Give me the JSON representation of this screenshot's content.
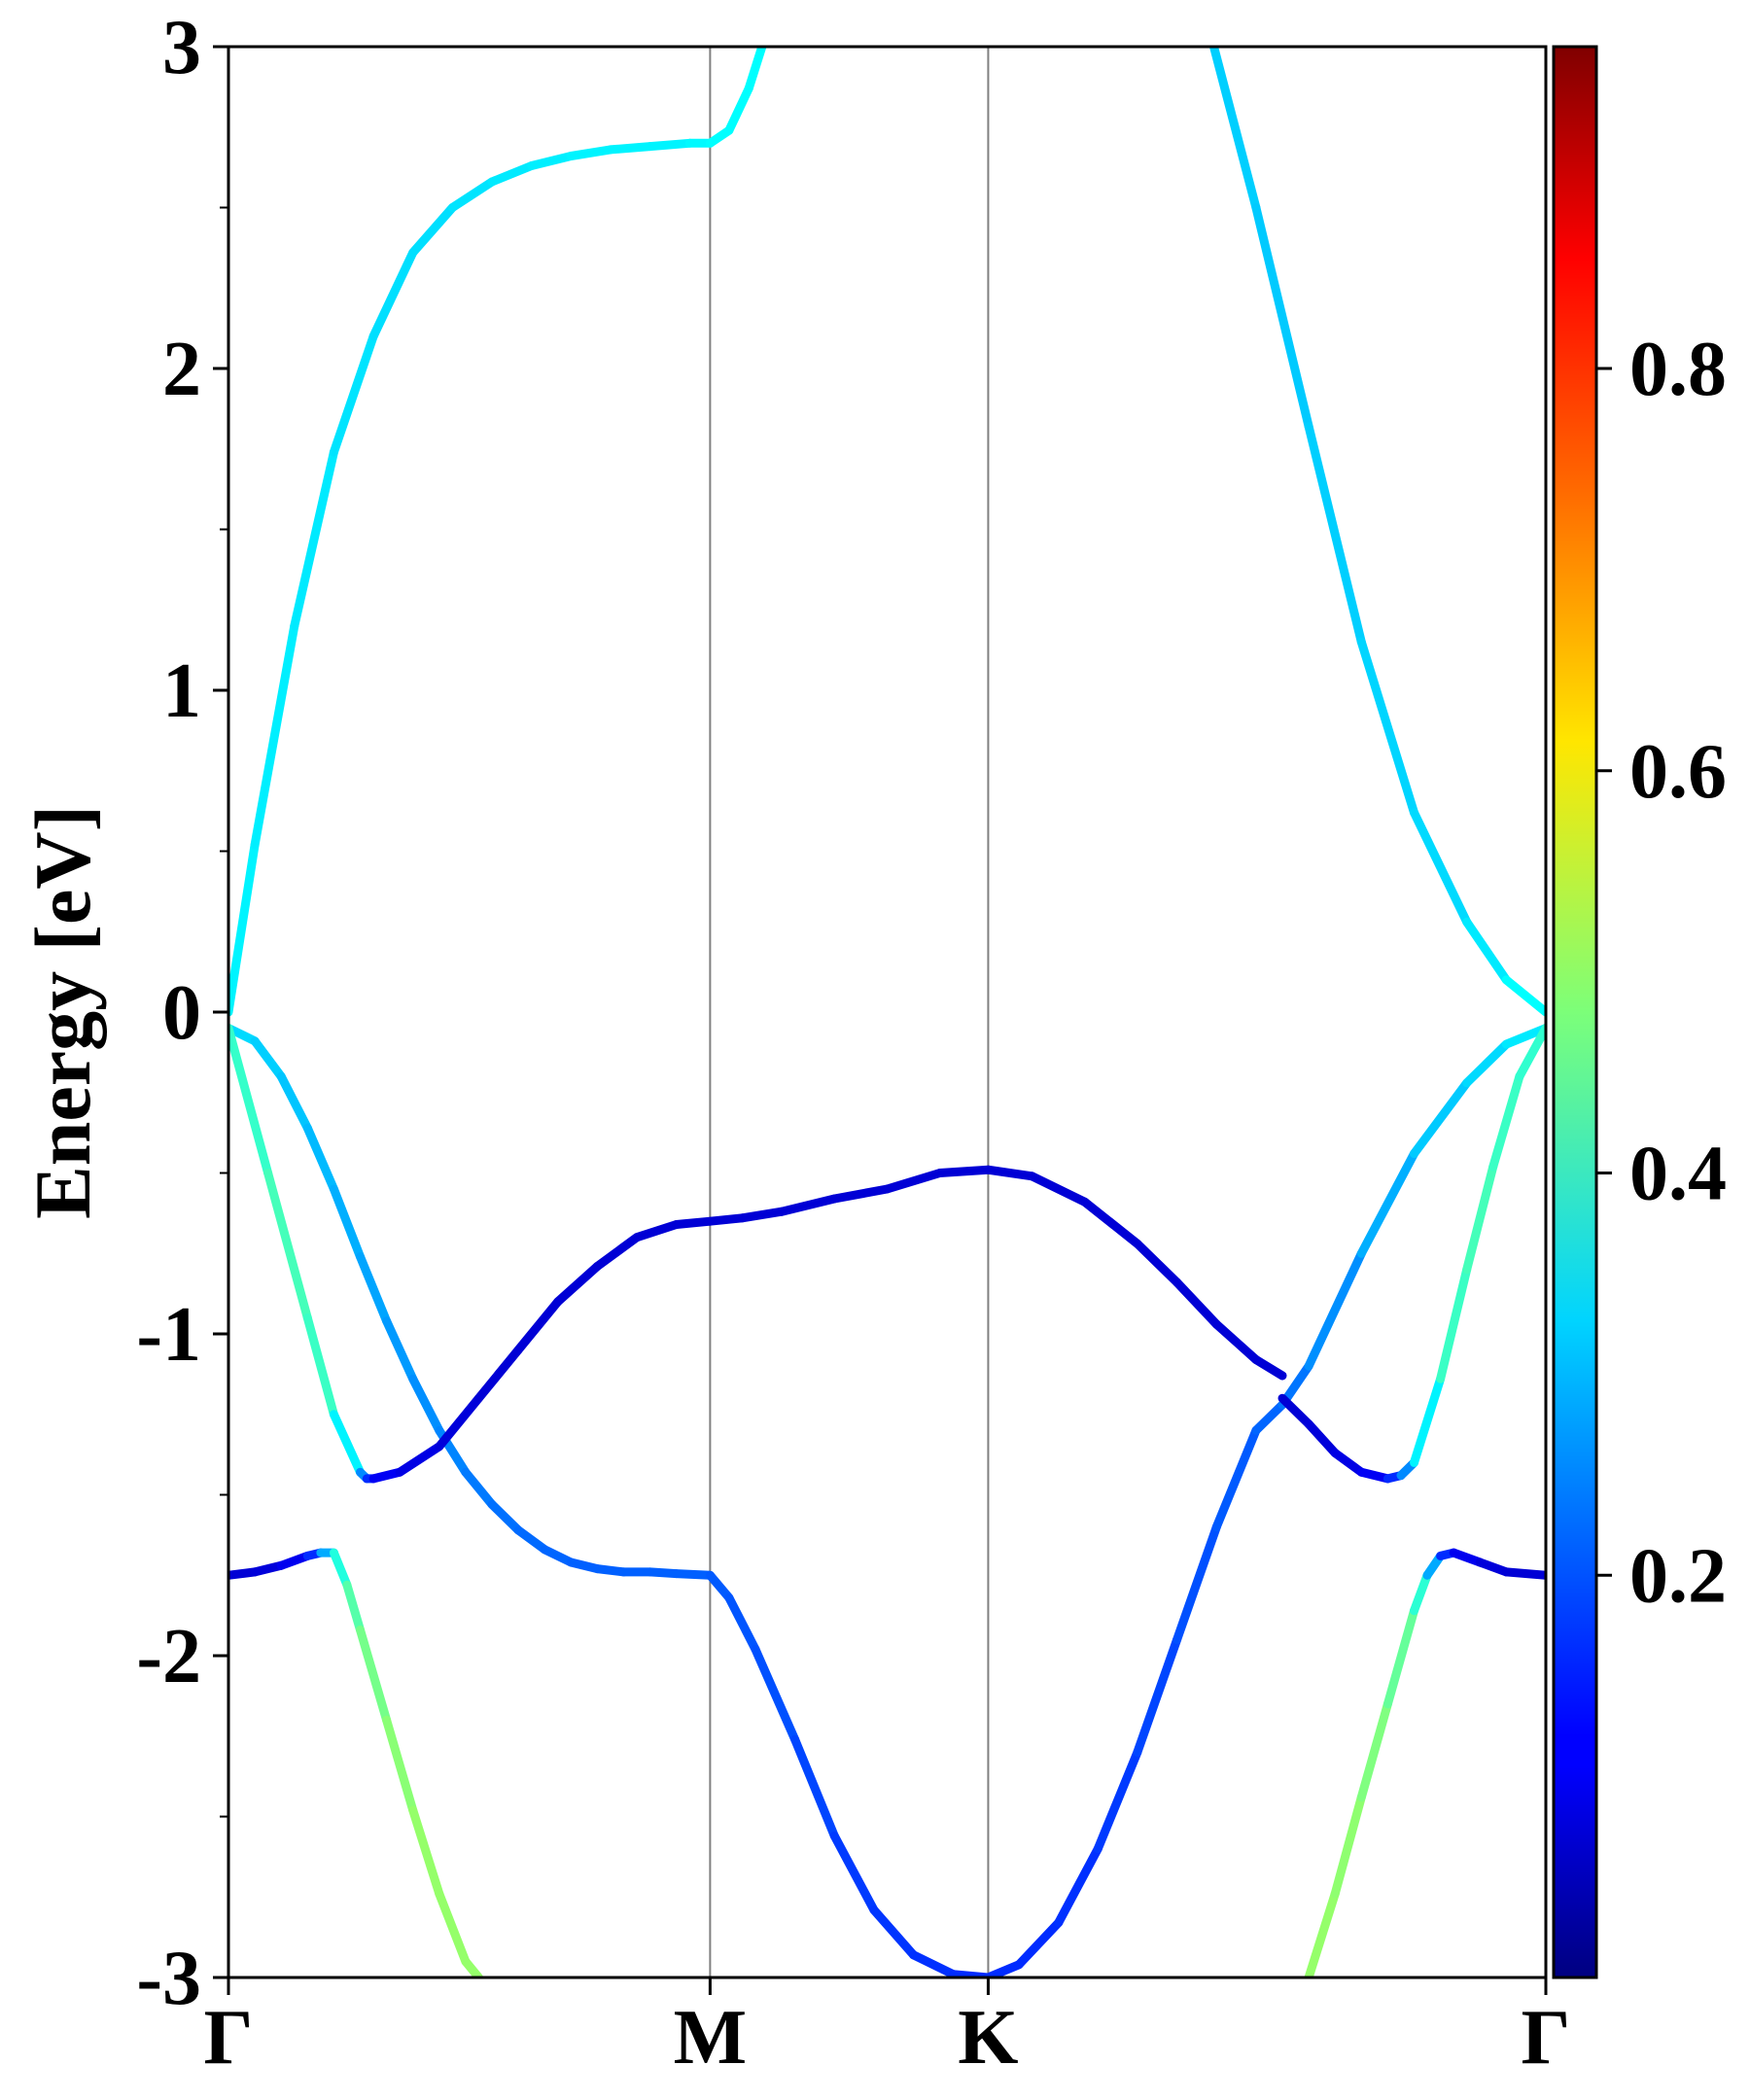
{
  "chart_data": {
    "type": "line",
    "title": "",
    "xlabel": "",
    "ylabel": "Energy [eV]",
    "ylim": [
      -3,
      3
    ],
    "y_major_ticks": [
      -3,
      -2,
      -1,
      0,
      1,
      2,
      3
    ],
    "y_minor_step": 0.5,
    "y_tick_labels": [
      "-3",
      "-2",
      "-1",
      "0",
      "1",
      "2",
      "3"
    ],
    "k_path": [
      {
        "label": "Γ",
        "k": 0.0
      },
      {
        "label": "M",
        "k": 0.3656
      },
      {
        "label": "K",
        "k": 0.5767
      },
      {
        "label": "Γ",
        "k": 1.0
      }
    ],
    "xlim": [
      0.0,
      1.0
    ],
    "colorbar": {
      "colormap": "jet",
      "range": [
        0.0,
        0.96
      ],
      "ticks": [
        0.2,
        0.4,
        0.6,
        0.8
      ],
      "tick_labels": [
        "0.2",
        "0.4",
        "0.6",
        "0.8"
      ]
    },
    "series": [
      {
        "x": [
          0.0,
          0.02,
          0.05,
          0.08,
          0.11,
          0.14,
          0.17,
          0.2,
          0.23,
          0.26,
          0.29,
          0.32,
          0.35,
          0.3656,
          0.38,
          0.395,
          0.405
        ],
        "y": [
          0.0,
          0.52,
          1.2,
          1.74,
          2.1,
          2.36,
          2.5,
          2.58,
          2.63,
          2.66,
          2.68,
          2.69,
          2.7,
          2.7,
          2.74,
          2.87,
          3.0
        ],
        "c": [
          0.35,
          0.35,
          0.34,
          0.34,
          0.33,
          0.33,
          0.33,
          0.34,
          0.34,
          0.35,
          0.35,
          0.35,
          0.35,
          0.36,
          0.36,
          0.36,
          0.36
        ]
      },
      {
        "x": [
          0.748,
          0.78,
          0.82,
          0.86,
          0.9,
          0.94,
          0.97,
          1.0
        ],
        "y": [
          3.0,
          2.5,
          1.82,
          1.15,
          0.62,
          0.28,
          0.1,
          0.0
        ],
        "c": [
          0.32,
          0.31,
          0.31,
          0.32,
          0.32,
          0.33,
          0.35,
          0.37
        ]
      },
      {
        "x": [
          0.0,
          0.02,
          0.04,
          0.06,
          0.08,
          0.1,
          0.12,
          0.14,
          0.16,
          0.18,
          0.2,
          0.22,
          0.24,
          0.26,
          0.28,
          0.3,
          0.32,
          0.34,
          0.3656,
          0.38,
          0.4,
          0.43,
          0.46,
          0.49,
          0.52,
          0.55,
          0.5767,
          0.6,
          0.63,
          0.66,
          0.69,
          0.72,
          0.75,
          0.78,
          0.8,
          0.82,
          0.86,
          0.9,
          0.94,
          0.97,
          1.0
        ],
        "y": [
          -0.05,
          -0.09,
          -0.2,
          -0.36,
          -0.55,
          -0.76,
          -0.96,
          -1.14,
          -1.3,
          -1.43,
          -1.53,
          -1.61,
          -1.67,
          -1.71,
          -1.73,
          -1.74,
          -1.74,
          -1.745,
          -1.75,
          -1.82,
          -1.98,
          -2.26,
          -2.56,
          -2.79,
          -2.93,
          -2.99,
          -3.0,
          -2.96,
          -2.83,
          -2.6,
          -2.3,
          -1.95,
          -1.6,
          -1.3,
          -1.22,
          -1.1,
          -0.75,
          -0.44,
          -0.22,
          -0.1,
          -0.05
        ],
        "c": [
          0.33,
          0.32,
          0.31,
          0.3,
          0.29,
          0.28,
          0.27,
          0.26,
          0.25,
          0.24,
          0.23,
          0.22,
          0.22,
          0.21,
          0.21,
          0.21,
          0.21,
          0.21,
          0.21,
          0.2,
          0.2,
          0.19,
          0.18,
          0.17,
          0.17,
          0.16,
          0.16,
          0.16,
          0.16,
          0.17,
          0.18,
          0.19,
          0.2,
          0.21,
          0.22,
          0.24,
          0.27,
          0.3,
          0.32,
          0.33,
          0.35
        ]
      },
      {
        "x": [
          0.0,
          0.03,
          0.06,
          0.08,
          0.1,
          0.105,
          0.11,
          0.13,
          0.16,
          0.19,
          0.22,
          0.25,
          0.28,
          0.31,
          0.34,
          0.3656,
          0.39,
          0.42,
          0.46,
          0.5,
          0.54,
          0.5767,
          0.61,
          0.65,
          0.69,
          0.72,
          0.75,
          0.78,
          0.8
        ],
        "y": [
          -0.05,
          -0.5,
          -0.95,
          -1.25,
          -1.43,
          -1.45,
          -1.45,
          -1.43,
          -1.35,
          -1.2,
          -1.05,
          -0.9,
          -0.79,
          -0.7,
          -0.66,
          -0.65,
          -0.64,
          -0.62,
          -0.58,
          -0.55,
          -0.5,
          -0.49,
          -0.51,
          -0.59,
          -0.72,
          -0.84,
          -0.97,
          -1.08,
          -1.13
        ],
        "c": [
          0.4,
          0.42,
          0.43,
          0.4,
          0.3,
          0.2,
          0.12,
          0.1,
          0.09,
          0.08,
          0.08,
          0.08,
          0.08,
          0.08,
          0.08,
          0.08,
          0.08,
          0.08,
          0.08,
          0.08,
          0.08,
          0.08,
          0.08,
          0.08,
          0.08,
          0.08,
          0.08,
          0.08,
          0.08
        ]
      },
      {
        "x": [
          0.8,
          0.82,
          0.84,
          0.86,
          0.88,
          0.89,
          0.9,
          0.92,
          0.94,
          0.96,
          0.98,
          1.0
        ],
        "y": [
          -1.2,
          -1.28,
          -1.37,
          -1.43,
          -1.45,
          -1.44,
          -1.4,
          -1.14,
          -0.8,
          -0.48,
          -0.2,
          -0.05
        ],
        "c": [
          0.08,
          0.08,
          0.09,
          0.1,
          0.12,
          0.2,
          0.3,
          0.4,
          0.43,
          0.42,
          0.41,
          0.4
        ]
      },
      {
        "x": [
          0.0,
          0.02,
          0.04,
          0.06,
          0.07,
          0.08,
          0.09,
          0.1,
          0.12,
          0.14,
          0.16,
          0.18,
          0.19
        ],
        "y": [
          -1.75,
          -1.74,
          -1.72,
          -1.69,
          -1.68,
          -1.68,
          -1.78,
          -1.92,
          -2.2,
          -2.48,
          -2.74,
          -2.95,
          -3.0
        ],
        "c": [
          0.08,
          0.08,
          0.09,
          0.12,
          0.2,
          0.36,
          0.42,
          0.46,
          0.48,
          0.5,
          0.5,
          0.5,
          0.5
        ]
      },
      {
        "x": [
          0.82,
          0.84,
          0.86,
          0.88,
          0.9,
          0.91,
          0.92,
          0.93,
          0.95,
          0.97,
          1.0
        ],
        "y": [
          -3.0,
          -2.74,
          -2.44,
          -2.15,
          -1.86,
          -1.75,
          -1.69,
          -1.68,
          -1.71,
          -1.74,
          -1.75
        ],
        "c": [
          0.5,
          0.5,
          0.49,
          0.47,
          0.44,
          0.36,
          0.2,
          0.12,
          0.09,
          0.08,
          0.08
        ]
      }
    ]
  }
}
